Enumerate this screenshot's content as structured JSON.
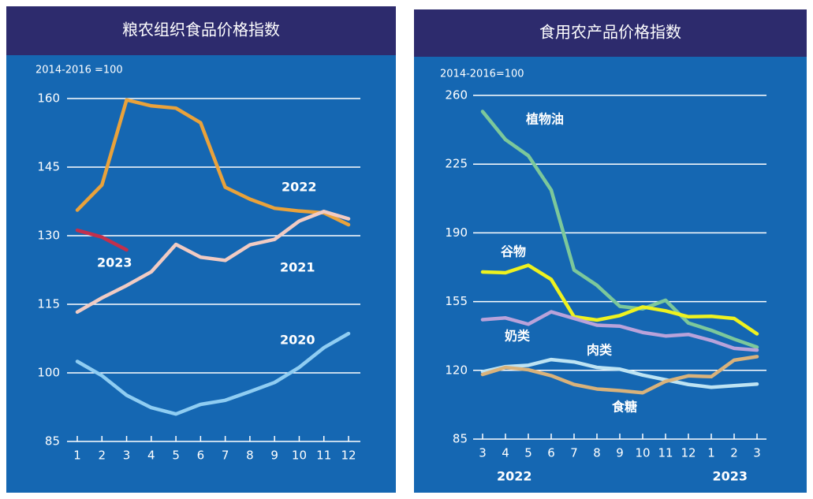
{
  "chart_data": [
    {
      "type": "line",
      "title": "粮农组织食品价格指数",
      "subtitle": "2014-2016 =100",
      "categories": [
        "1",
        "2",
        "3",
        "4",
        "5",
        "6",
        "7",
        "8",
        "9",
        "10",
        "11",
        "12"
      ],
      "ylim": [
        85,
        160
      ],
      "yticks": [
        85,
        100,
        115,
        130,
        145,
        160
      ],
      "grid": true,
      "series": [
        {
          "name": "2022",
          "color": "#e9a23b",
          "values": [
            135.6,
            141.1,
            159.7,
            158.4,
            157.9,
            154.7,
            140.6,
            138.0,
            136.0,
            135.4,
            135.0,
            132.4
          ]
        },
        {
          "name": "2021",
          "color": "#f1cbc3",
          "values": [
            113.3,
            116.4,
            119.1,
            122.1,
            128.1,
            125.3,
            124.6,
            128.0,
            129.2,
            133.2,
            135.3,
            133.7
          ]
        },
        {
          "name": "2020",
          "color": "#8fcdf2",
          "values": [
            102.5,
            99.4,
            95.1,
            92.4,
            91.0,
            93.1,
            94.0,
            95.9,
            97.9,
            101.2,
            105.5,
            108.6
          ]
        },
        {
          "name": "2023",
          "color": "#c3304c",
          "values": [
            131.2,
            129.7,
            126.9,
            null,
            null,
            null,
            null,
            null,
            null,
            null,
            null,
            null
          ]
        }
      ]
    },
    {
      "type": "line",
      "title": "食用农产品价格指数",
      "subtitle": "2014-2016=100",
      "categories": [
        "3",
        "4",
        "5",
        "6",
        "7",
        "8",
        "9",
        "10",
        "11",
        "12",
        "1",
        "2",
        "3"
      ],
      "x_group_labels": [
        "2022",
        "2023"
      ],
      "ylim": [
        85,
        260
      ],
      "yticks": [
        85,
        120,
        155,
        190,
        225,
        260
      ],
      "grid": true,
      "series": [
        {
          "name": "植物油",
          "color": "#7cc89b",
          "values": [
            251.8,
            237.5,
            229.3,
            211.8,
            171.1,
            163.3,
            152.6,
            151.3,
            155.7,
            144.1,
            140.4,
            135.9,
            131.8
          ]
        },
        {
          "name": "谷物",
          "color": "#eef21f",
          "values": [
            170.1,
            169.7,
            173.5,
            166.3,
            147.3,
            145.6,
            147.9,
            152.3,
            150.3,
            147.3,
            147.5,
            146.4,
            138.6
          ]
        },
        {
          "name": "奶类",
          "color": "#b9a2da",
          "values": [
            145.8,
            146.7,
            143.5,
            149.8,
            146.4,
            143.0,
            142.5,
            139.3,
            137.5,
            138.3,
            135.2,
            131.2,
            130.3
          ]
        },
        {
          "name": "肉类",
          "color": "#bde3f3",
          "values": [
            119.3,
            121.9,
            122.6,
            125.5,
            124.3,
            121.5,
            120.6,
            117.6,
            115.2,
            112.8,
            111.4,
            112.2,
            113.0
          ]
        },
        {
          "name": "食糖",
          "color": "#d9b27b",
          "values": [
            117.9,
            121.5,
            120.3,
            117.3,
            112.8,
            110.5,
            109.7,
            108.6,
            114.4,
            117.2,
            116.8,
            125.2,
            127.0
          ]
        }
      ]
    }
  ]
}
